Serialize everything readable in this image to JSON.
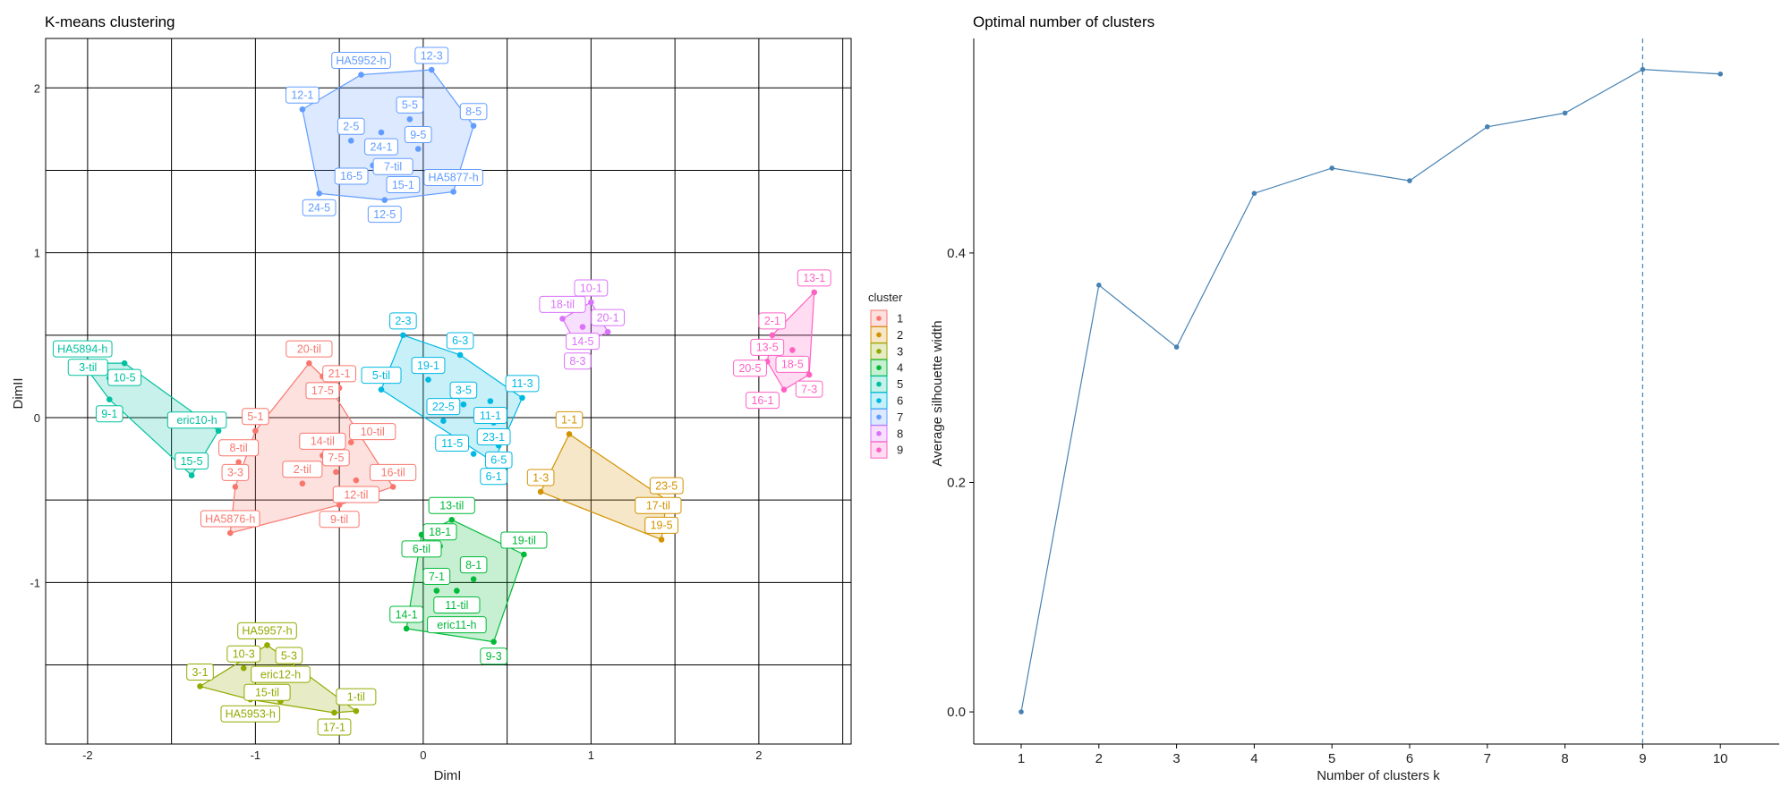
{
  "chart_data": [
    {
      "type": "scatter",
      "title": "K-means clustering",
      "xlabel": "DimI",
      "ylabel": "DimII",
      "xlim": [
        -2.25,
        2.55
      ],
      "ylim": [
        -1.98,
        2.3
      ],
      "xticks": [
        -2,
        -1,
        0,
        1,
        2
      ],
      "yticks": [
        -1,
        0,
        1,
        2
      ],
      "grid": true,
      "legend_title": "cluster",
      "legend_position": "right",
      "colors": {
        "1": "#F8766D",
        "2": "#D39200",
        "3": "#93AA00",
        "4": "#00BA38",
        "5": "#00C19F",
        "6": "#00B9E3",
        "7": "#619CFF",
        "8": "#DB72FB",
        "9": "#FF61C3"
      },
      "clusters": [
        {
          "id": "1",
          "points": [
            {
              "label": "20-til",
              "x": -0.68,
              "y": 0.33
            },
            {
              "label": "17-5",
              "x": -0.6,
              "y": 0.25
            },
            {
              "label": "21-1",
              "x": -0.5,
              "y": 0.18
            },
            {
              "label": "5-1",
              "x": -1.0,
              "y": -0.08
            },
            {
              "label": "14-til",
              "x": -0.6,
              "y": -0.23
            },
            {
              "label": "10-til",
              "x": -0.43,
              "y": -0.15
            },
            {
              "label": "8-til",
              "x": -1.1,
              "y": -0.27
            },
            {
              "label": "7-5",
              "x": -0.52,
              "y": -0.33
            },
            {
              "label": "3-3",
              "x": -1.12,
              "y": -0.42
            },
            {
              "label": "2-til",
              "x": -0.72,
              "y": -0.4
            },
            {
              "label": "12-til",
              "x": -0.4,
              "y": -0.38
            },
            {
              "label": "16-til",
              "x": -0.18,
              "y": -0.42
            },
            {
              "label": "HA5876-h",
              "x": -1.15,
              "y": -0.7
            },
            {
              "label": "9-til",
              "x": -0.5,
              "y": -0.53
            }
          ],
          "hull": [
            [
              -0.68,
              0.33
            ],
            [
              -0.6,
              0.25
            ],
            [
              -0.18,
              -0.42
            ],
            [
              -0.5,
              -0.53
            ],
            [
              -1.15,
              -0.7
            ],
            [
              -1.12,
              -0.42
            ],
            [
              -1.0,
              -0.08
            ]
          ]
        },
        {
          "id": "2",
          "points": [
            {
              "label": "1-1",
              "x": 0.87,
              "y": -0.1
            },
            {
              "label": "1-3",
              "x": 0.7,
              "y": -0.45
            },
            {
              "label": "23-5",
              "x": 1.45,
              "y": -0.5
            },
            {
              "label": "17-til",
              "x": 1.4,
              "y": -0.62
            },
            {
              "label": "19-5",
              "x": 1.42,
              "y": -0.74
            }
          ],
          "hull": [
            [
              0.87,
              -0.1
            ],
            [
              1.45,
              -0.5
            ],
            [
              1.42,
              -0.74
            ],
            [
              0.7,
              -0.45
            ]
          ]
        },
        {
          "id": "3",
          "points": [
            {
              "label": "HA5957-h",
              "x": -0.93,
              "y": -1.38
            },
            {
              "label": "10-3",
              "x": -1.07,
              "y": -1.52
            },
            {
              "label": "5-3",
              "x": -0.8,
              "y": -1.53
            },
            {
              "label": "3-1",
              "x": -1.33,
              "y": -1.63
            },
            {
              "label": "15-til",
              "x": -0.93,
              "y": -1.58
            },
            {
              "label": "HA5953-h",
              "x": -1.03,
              "y": -1.71
            },
            {
              "label": "eric12-h",
              "x": -0.85,
              "y": -1.72
            },
            {
              "label": "1-til",
              "x": -0.4,
              "y": -1.78
            },
            {
              "label": "17-1",
              "x": -0.53,
              "y": -1.79
            }
          ],
          "hull": [
            [
              -0.93,
              -1.38
            ],
            [
              -0.4,
              -1.78
            ],
            [
              -0.53,
              -1.79
            ],
            [
              -1.03,
              -1.71
            ],
            [
              -1.33,
              -1.63
            ]
          ]
        },
        {
          "id": "4",
          "points": [
            {
              "label": "13-til",
              "x": 0.17,
              "y": -0.62
            },
            {
              "label": "6-til",
              "x": -0.01,
              "y": -0.71
            },
            {
              "label": "19-til",
              "x": 0.6,
              "y": -0.83
            },
            {
              "label": "18-1",
              "x": 0.1,
              "y": -0.78
            },
            {
              "label": "8-1",
              "x": 0.3,
              "y": -0.98
            },
            {
              "label": "7-1",
              "x": 0.08,
              "y": -1.05
            },
            {
              "label": "11-til",
              "x": 0.2,
              "y": -1.05
            },
            {
              "label": "eric11-h",
              "x": 0.2,
              "y": -1.17
            },
            {
              "label": "14-1",
              "x": -0.1,
              "y": -1.28
            },
            {
              "label": "9-3",
              "x": 0.42,
              "y": -1.36
            }
          ],
          "hull": [
            [
              0.17,
              -0.62
            ],
            [
              0.6,
              -0.83
            ],
            [
              0.42,
              -1.36
            ],
            [
              -0.1,
              -1.28
            ],
            [
              -0.01,
              -0.71
            ]
          ]
        },
        {
          "id": "5",
          "points": [
            {
              "label": "HA5894-h",
              "x": -2.03,
              "y": 0.33
            },
            {
              "label": "10-5",
              "x": -1.78,
              "y": 0.33
            },
            {
              "label": "3-til",
              "x": -1.87,
              "y": 0.24
            },
            {
              "label": "9-1",
              "x": -1.87,
              "y": 0.11
            },
            {
              "label": "eric10-h",
              "x": -1.22,
              "y": -0.08
            },
            {
              "label": "15-5",
              "x": -1.38,
              "y": -0.35
            }
          ],
          "hull": [
            [
              -2.03,
              0.33
            ],
            [
              -1.78,
              0.33
            ],
            [
              -1.22,
              -0.08
            ],
            [
              -1.38,
              -0.35
            ],
            [
              -1.87,
              0.11
            ]
          ]
        },
        {
          "id": "6",
          "points": [
            {
              "label": "2-3",
              "x": -0.12,
              "y": 0.5
            },
            {
              "label": "19-1",
              "x": 0.03,
              "y": 0.23
            },
            {
              "label": "6-3",
              "x": 0.22,
              "y": 0.38
            },
            {
              "label": "5-til",
              "x": -0.25,
              "y": 0.17
            },
            {
              "label": "3-5",
              "x": 0.24,
              "y": 0.08
            },
            {
              "label": "11-1",
              "x": 0.4,
              "y": 0.1
            },
            {
              "label": "11-3",
              "x": 0.59,
              "y": 0.12
            },
            {
              "label": "22-5",
              "x": 0.12,
              "y": -0.02
            },
            {
              "label": "23-1",
              "x": 0.42,
              "y": -0.03
            },
            {
              "label": "6-5",
              "x": 0.45,
              "y": -0.17
            },
            {
              "label": "11-5",
              "x": 0.3,
              "y": -0.22
            },
            {
              "label": "6-1",
              "x": 0.42,
              "y": -0.27
            }
          ],
          "hull": [
            [
              -0.12,
              0.5
            ],
            [
              0.22,
              0.38
            ],
            [
              0.59,
              0.12
            ],
            [
              0.42,
              -0.27
            ],
            [
              -0.25,
              0.17
            ]
          ]
        },
        {
          "id": "7",
          "points": [
            {
              "label": "12-3",
              "x": 0.05,
              "y": 2.11
            },
            {
              "label": "HA5952-h",
              "x": -0.37,
              "y": 2.08
            },
            {
              "label": "5-5",
              "x": -0.08,
              "y": 1.81
            },
            {
              "label": "8-5",
              "x": 0.3,
              "y": 1.77
            },
            {
              "label": "12-1",
              "x": -0.72,
              "y": 1.87
            },
            {
              "label": "24-1",
              "x": -0.25,
              "y": 1.73
            },
            {
              "label": "7-til",
              "x": -0.18,
              "y": 1.61
            },
            {
              "label": "9-5",
              "x": -0.03,
              "y": 1.63
            },
            {
              "label": "2-5",
              "x": -0.43,
              "y": 1.68
            },
            {
              "label": "16-5",
              "x": -0.3,
              "y": 1.53
            },
            {
              "label": "15-1",
              "x": -0.12,
              "y": 1.5
            },
            {
              "label": "24-5",
              "x": -0.62,
              "y": 1.36
            },
            {
              "label": "HA5877-h",
              "x": 0.18,
              "y": 1.37
            },
            {
              "label": "12-5",
              "x": -0.23,
              "y": 1.32
            }
          ],
          "hull": [
            [
              -0.37,
              2.08
            ],
            [
              0.05,
              2.11
            ],
            [
              0.3,
              1.77
            ],
            [
              0.18,
              1.37
            ],
            [
              -0.23,
              1.32
            ],
            [
              -0.62,
              1.36
            ],
            [
              -0.72,
              1.87
            ]
          ]
        },
        {
          "id": "8",
          "points": [
            {
              "label": "10-1",
              "x": 1.0,
              "y": 0.7
            },
            {
              "label": "18-til",
              "x": 0.83,
              "y": 0.6
            },
            {
              "label": "14-5",
              "x": 0.95,
              "y": 0.55
            },
            {
              "label": "20-1",
              "x": 1.1,
              "y": 0.52
            },
            {
              "label": "8-3",
              "x": 0.92,
              "y": 0.43
            }
          ],
          "hull": [
            [
              1.0,
              0.7
            ],
            [
              1.1,
              0.52
            ],
            [
              0.92,
              0.43
            ],
            [
              0.83,
              0.6
            ]
          ]
        },
        {
          "id": "9",
          "points": [
            {
              "label": "13-1",
              "x": 2.33,
              "y": 0.76
            },
            {
              "label": "2-1",
              "x": 2.08,
              "y": 0.5
            },
            {
              "label": "18-5",
              "x": 2.2,
              "y": 0.41
            },
            {
              "label": "13-5",
              "x": 2.05,
              "y": 0.34
            },
            {
              "label": "7-3",
              "x": 2.3,
              "y": 0.26
            },
            {
              "label": "20-5",
              "x": 2.15,
              "y": 0.3
            },
            {
              "label": "16-1",
              "x": 2.15,
              "y": 0.17
            }
          ],
          "hull": [
            [
              2.33,
              0.76
            ],
            [
              2.3,
              0.26
            ],
            [
              2.15,
              0.17
            ],
            [
              2.05,
              0.34
            ],
            [
              2.08,
              0.5
            ]
          ]
        }
      ]
    },
    {
      "type": "line",
      "title": "Optimal number of clusters",
      "xlabel": "Number of clusters k",
      "ylabel": "Average silhouette width",
      "x": [
        1,
        2,
        3,
        4,
        5,
        6,
        7,
        8,
        9,
        10
      ],
      "y": [
        0.0,
        0.372,
        0.318,
        0.452,
        0.474,
        0.463,
        0.51,
        0.522,
        0.56,
        0.556
      ],
      "yticks": [
        0.0,
        0.2,
        0.4
      ],
      "ylim": [
        -0.028,
        0.587
      ],
      "optimal_k": 9,
      "line_color": "#4682B4",
      "grid": false
    }
  ]
}
